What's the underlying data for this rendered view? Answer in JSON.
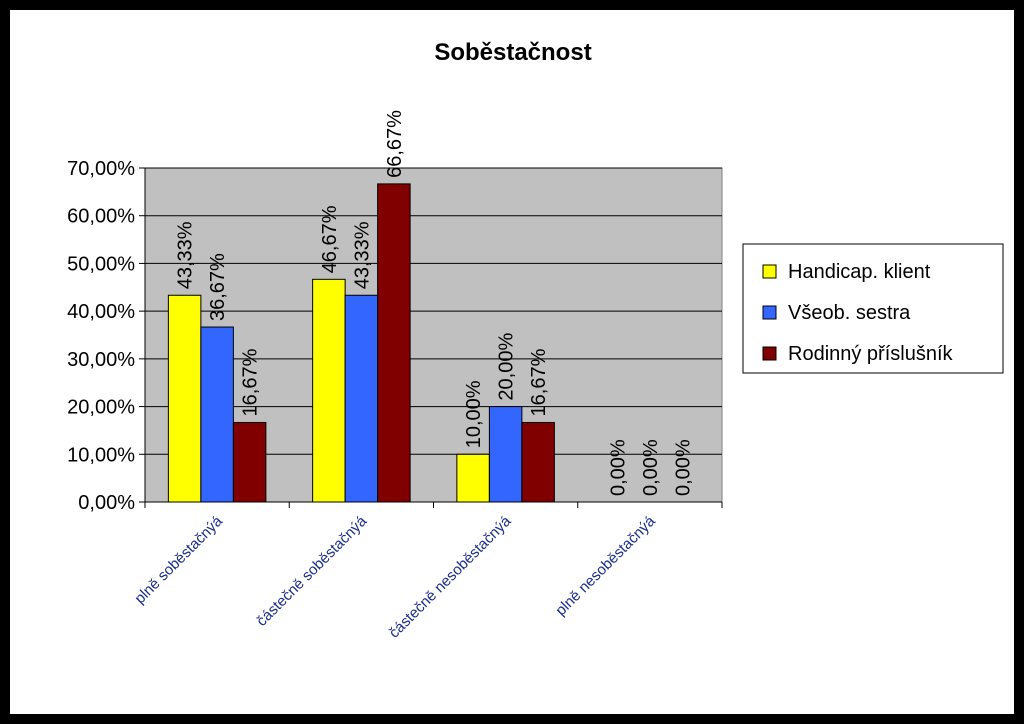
{
  "chart_data": {
    "type": "bar",
    "title": "Soběstačnost",
    "categories": [
      "plně soběstačnýá",
      "částečně soběstačnýá",
      "částečně nesoběstačnýá",
      "plně nesoběstačnýá"
    ],
    "series": [
      {
        "name": "Handicap. klient",
        "color": "#ffff00",
        "values": [
          43.33,
          46.67,
          10.0,
          0.0
        ],
        "labels": [
          "43,33%",
          "46,67%",
          "10,00%",
          "0,00%"
        ]
      },
      {
        "name": "Všeob. sestra",
        "color": "#3366ff",
        "values": [
          36.67,
          43.33,
          20.0,
          0.0
        ],
        "labels": [
          "36,67%",
          "43,33%",
          "20,00%",
          "0,00%"
        ]
      },
      {
        "name": "Rodinný příslušník",
        "color": "#800000",
        "values": [
          16.67,
          66.67,
          16.67,
          0.0
        ],
        "labels": [
          "16,67%",
          "66,67%",
          "16,67%",
          "0,00%"
        ]
      }
    ],
    "yticks": [
      0,
      10,
      20,
      30,
      40,
      50,
      60,
      70
    ],
    "ytick_labels": [
      "0,00%",
      "10,00%",
      "20,00%",
      "30,00%",
      "40,00%",
      "50,00%",
      "60,00%",
      "70,00%"
    ],
    "ylim": [
      0,
      70
    ],
    "xlabel": "",
    "ylabel": "",
    "grid": true,
    "legend_position": "right",
    "plot_background": "#c0c0c0"
  }
}
